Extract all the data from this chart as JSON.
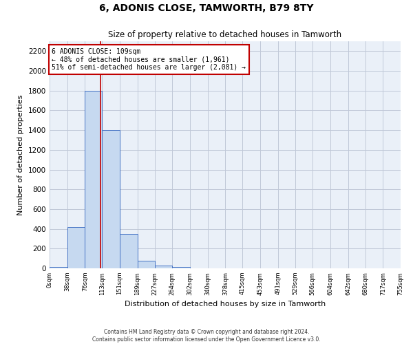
{
  "title": "6, ADONIS CLOSE, TAMWORTH, B79 8TY",
  "subtitle": "Size of property relative to detached houses in Tamworth",
  "xlabel": "Distribution of detached houses by size in Tamworth",
  "ylabel": "Number of detached properties",
  "bin_edges": [
    0,
    38,
    76,
    113,
    151,
    189,
    227,
    264,
    302,
    340,
    378,
    415,
    453,
    491,
    529,
    566,
    604,
    642,
    680,
    717,
    755
  ],
  "bar_heights": [
    15,
    420,
    1800,
    1400,
    350,
    80,
    30,
    15,
    0,
    0,
    0,
    0,
    0,
    0,
    0,
    0,
    0,
    0,
    0,
    0
  ],
  "bar_color": "#c6d9f0",
  "bar_edge_color": "#4472c4",
  "grid_color": "#c0c8d8",
  "bg_color": "#eaf0f8",
  "property_value": 109,
  "annotation_text": "6 ADONIS CLOSE: 109sqm\n← 48% of detached houses are smaller (1,961)\n51% of semi-detached houses are larger (2,081) →",
  "vline_color": "#c00000",
  "ylim": [
    0,
    2300
  ],
  "yticks": [
    0,
    200,
    400,
    600,
    800,
    1000,
    1200,
    1400,
    1600,
    1800,
    2000,
    2200
  ],
  "footer1": "Contains HM Land Registry data © Crown copyright and database right 2024.",
  "footer2": "Contains public sector information licensed under the Open Government Licence v3.0."
}
